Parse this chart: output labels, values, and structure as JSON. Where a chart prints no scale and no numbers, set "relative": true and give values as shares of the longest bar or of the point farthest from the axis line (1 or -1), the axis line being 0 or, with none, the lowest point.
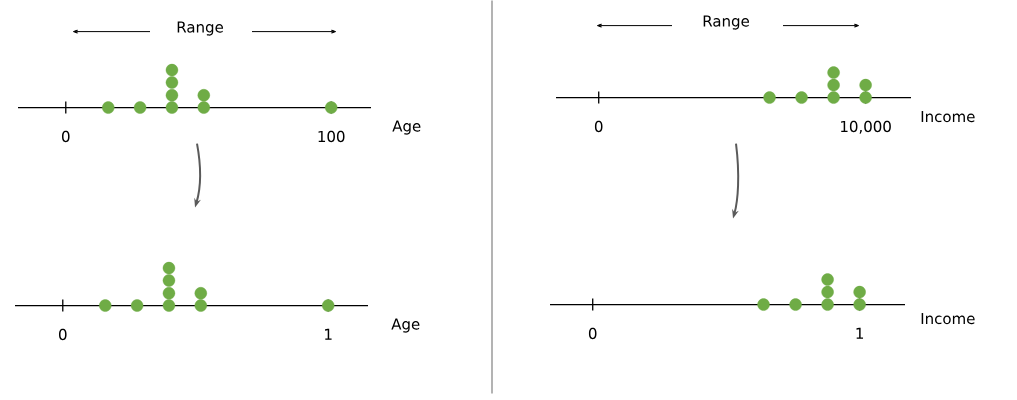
{
  "chart_data": [
    {
      "type": "scatter",
      "xlabel": "Age",
      "annotations": [
        "Range"
      ],
      "x": [
        16,
        28,
        40,
        40,
        40,
        40,
        52,
        52,
        100
      ],
      "values": [
        0,
        0,
        0,
        0.33,
        0.67,
        1,
        0,
        0.33,
        0
      ],
      "relative": true,
      "color": "#6fac46",
      "marker": "circle",
      "xlim": [
        -18,
        115
      ],
      "xticks": [
        0,
        100
      ],
      "tick_labels": "x"
    },
    {
      "type": "scatter",
      "xlabel": "Income",
      "annotations": [
        "Range"
      ],
      "x": [
        6400,
        7600,
        8800,
        8800,
        8800,
        10000,
        10000
      ],
      "values": [
        0,
        0,
        0,
        0.5,
        1,
        0,
        0.5
      ],
      "relative": true,
      "color": "#6fac46",
      "marker": "circle",
      "xlim": [
        -1600,
        11700
      ],
      "xticks": [
        0,
        {
          "value": 10000,
          "label": "10,000"
        }
      ],
      "tick_labels": "x"
    },
    {
      "type": "scatter",
      "xlabel": "Age",
      "x": [
        0.16,
        0.28,
        0.4,
        0.4,
        0.4,
        0.4,
        0.52,
        0.52,
        1
      ],
      "values": [
        0,
        0,
        0,
        0.33,
        0.67,
        1,
        0,
        0.33,
        0
      ],
      "relative": true,
      "color": "#6fac46",
      "marker": "circle",
      "xlim": [
        -0.18,
        1.15
      ],
      "xticks": [
        0,
        1
      ],
      "tick_labels": "x"
    },
    {
      "type": "scatter",
      "xlabel": "Income",
      "x": [
        0.64,
        0.76,
        0.88,
        0.88,
        0.88,
        1,
        1
      ],
      "values": [
        0,
        0,
        0,
        0.5,
        1,
        0,
        0.5
      ],
      "relative": true,
      "color": "#6fac46",
      "marker": "circle",
      "xlim": [
        -0.16,
        1.17
      ],
      "xticks": [
        0,
        1
      ],
      "tick_labels": "x"
    }
  ]
}
